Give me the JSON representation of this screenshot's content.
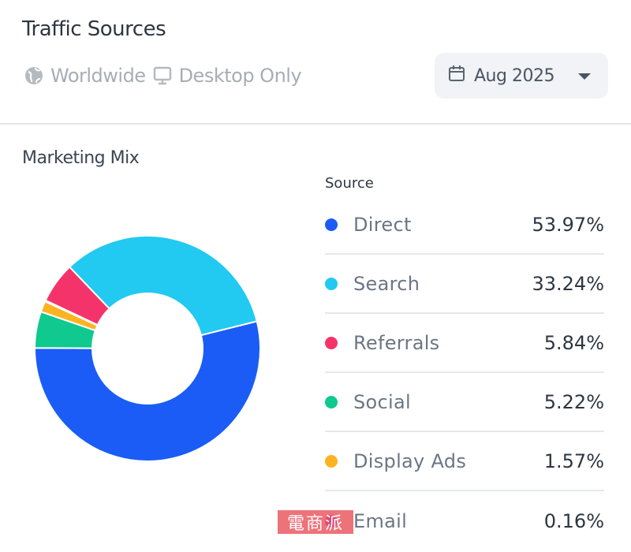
{
  "header": {
    "title": "Traffic Sources",
    "region": "Worldwide",
    "device": "Desktop Only",
    "date": "Aug 2025"
  },
  "section_title": "Marketing Mix",
  "legend_header": "Source",
  "watermark": "電商派",
  "chart_data": {
    "type": "pie",
    "title": "Marketing Mix",
    "donut": true,
    "categories": [
      "Direct",
      "Search",
      "Referrals",
      "Social",
      "Display Ads",
      "Email"
    ],
    "values": [
      53.97,
      33.24,
      5.84,
      5.22,
      1.57,
      0.16
    ],
    "labels": [
      "53.97%",
      "33.24%",
      "5.84%",
      "5.22%",
      "1.57%",
      "0.16%"
    ],
    "colors": [
      "#1a5cf5",
      "#22c9f0",
      "#f5336b",
      "#0fc98e",
      "#fbb321",
      "#b23be0"
    ],
    "legend_position": "right"
  }
}
